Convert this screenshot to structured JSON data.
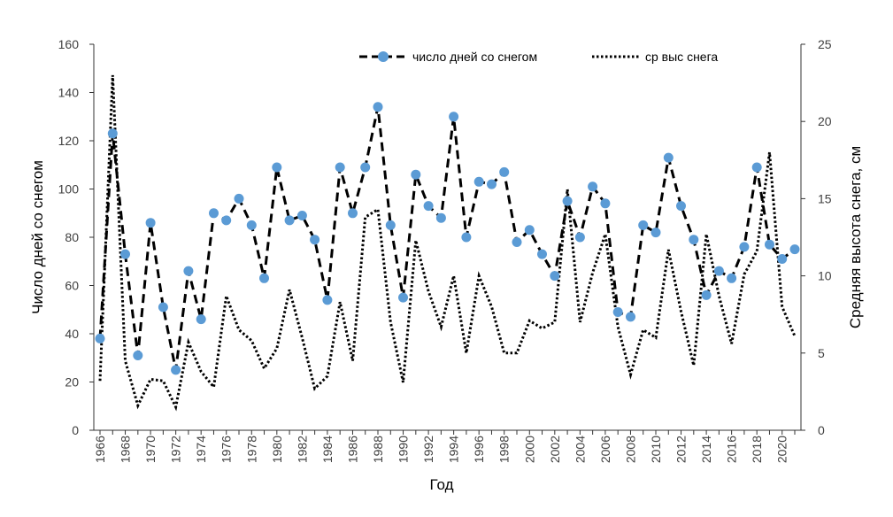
{
  "chart_data": {
    "type": "line",
    "x": [
      1966,
      1967,
      1968,
      1969,
      1970,
      1971,
      1972,
      1973,
      1974,
      1975,
      1976,
      1977,
      1978,
      1979,
      1980,
      1981,
      1982,
      1983,
      1984,
      1985,
      1986,
      1987,
      1988,
      1989,
      1990,
      1991,
      1992,
      1993,
      1994,
      1995,
      1996,
      1997,
      1998,
      1999,
      2000,
      2001,
      2002,
      2003,
      2004,
      2005,
      2006,
      2007,
      2008,
      2009,
      2010,
      2011,
      2012,
      2013,
      2014,
      2015,
      2016,
      2017,
      2018,
      2019,
      2020,
      2021
    ],
    "x_ticks": [
      "1966",
      "1968",
      "1970",
      "1972",
      "1974",
      "1976",
      "1978",
      "1980",
      "1982",
      "1984",
      "1986",
      "1988",
      "1990",
      "1992",
      "1994",
      "1996",
      "1998",
      "2000",
      "2002",
      "2004",
      "2006",
      "2008",
      "2010",
      "2012",
      "2014",
      "2016",
      "2018",
      "2020"
    ],
    "xlabel": "Год",
    "ylabel_left": "Число дней со снегом",
    "ylabel_right": "Средняя высота снега, см",
    "ylim_left": [
      0,
      160
    ],
    "ylim_right": [
      0,
      25
    ],
    "yticks_left": [
      "0",
      "20",
      "40",
      "60",
      "80",
      "100",
      "120",
      "140",
      "160"
    ],
    "yticks_right": [
      "0",
      "5",
      "10",
      "15",
      "20",
      "25"
    ],
    "grid": false,
    "legend_position": "top",
    "series": [
      {
        "name": "число дней со снегом",
        "axis": "left",
        "style": "dashed",
        "marker": "circle",
        "color": "#000000",
        "marker_color": "#5b9bd5",
        "values": [
          38,
          123,
          73,
          31,
          86,
          51,
          25,
          66,
          46,
          90,
          87,
          96,
          85,
          63,
          109,
          87,
          89,
          79,
          54,
          109,
          90,
          109,
          134,
          85,
          55,
          106,
          93,
          88,
          130,
          80,
          103,
          102,
          107,
          78,
          83,
          73,
          64,
          95,
          80,
          101,
          94,
          49,
          47,
          85,
          82,
          113,
          93,
          79,
          56,
          66,
          63,
          76,
          109,
          77,
          71,
          75
        ]
      },
      {
        "name": "ср выс снега",
        "axis": "right",
        "style": "dotted",
        "marker": "none",
        "color": "#000000",
        "values": [
          3.2,
          23,
          4.5,
          1.6,
          3.3,
          3.2,
          1.5,
          5.7,
          3.8,
          2.8,
          8.7,
          6.5,
          5.8,
          4,
          5.3,
          9.1,
          6,
          2.7,
          3.5,
          8.3,
          4.5,
          13.8,
          14.3,
          7,
          3.1,
          12.3,
          9,
          6.7,
          10,
          5,
          10,
          8,
          5,
          5,
          7.1,
          6.6,
          7,
          15.6,
          7,
          10.2,
          12.7,
          6.7,
          3.6,
          6.5,
          6,
          11.7,
          7.7,
          4.2,
          12.7,
          8.7,
          5.6,
          10.1,
          11.6,
          18,
          8,
          6.1
        ]
      }
    ]
  }
}
